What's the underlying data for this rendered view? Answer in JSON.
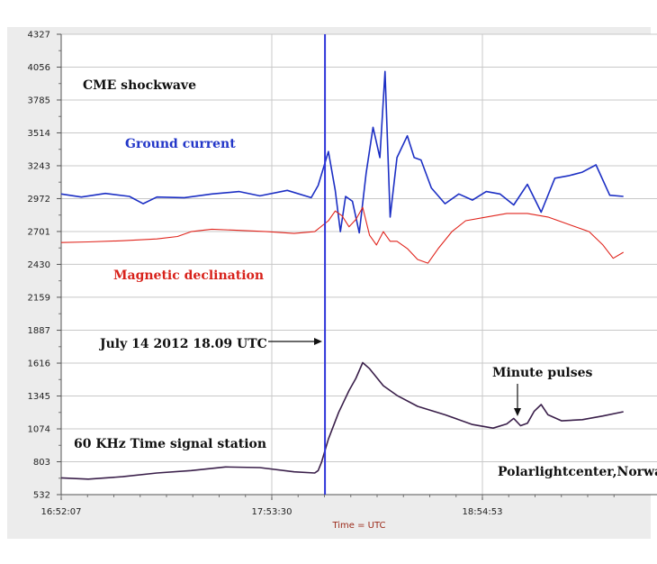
{
  "chart_data": {
    "type": "line",
    "xlabel": "Time = UTC",
    "x_ticks": [
      "16:52:07",
      "17:53:30",
      "18:54:53"
    ],
    "y_ticks": [
      532,
      803,
      1074,
      1345,
      1616,
      1887,
      2159,
      2430,
      2701,
      2972,
      3243,
      3514,
      3785,
      4056,
      4327
    ],
    "ylim": [
      532,
      4327
    ],
    "xlim": [
      "16:52:07",
      "19:36:00"
    ],
    "grid": true,
    "colors": {
      "ground_current": "#1c2fc4",
      "magnetic_declination": "#e0241c",
      "time_signal": "#3a1f4a",
      "event_line": "#2f35d9",
      "annotation_red": "#d8221b",
      "annotation_blue": "#2236c8",
      "axis_label": "#9b2a1a"
    },
    "series": [
      {
        "name": "Ground current",
        "x": [
          "16:52:07",
          "16:58:00",
          "17:05:00",
          "17:12:00",
          "17:16:00",
          "17:20:00",
          "17:28:00",
          "17:36:00",
          "17:44:00",
          "17:50:00",
          "17:58:00",
          "18:05:00",
          "18:07:00",
          "18:10:00",
          "18:12:00",
          "18:13:30",
          "18:15:00",
          "18:17:00",
          "18:19:00",
          "18:21:00",
          "18:23:00",
          "18:25:00",
          "18:26:30",
          "18:28:00",
          "18:30:00",
          "18:33:00",
          "18:35:00",
          "18:37:00",
          "18:40:00",
          "18:44:00",
          "18:48:00",
          "18:52:00",
          "18:56:00",
          "19:00:00",
          "19:04:00",
          "19:08:00",
          "19:12:00",
          "19:16:00",
          "19:20:00",
          "19:24:00",
          "19:28:00",
          "19:32:00",
          "19:36:00"
        ],
        "values": [
          3010,
          2985,
          3015,
          2990,
          2930,
          2985,
          2980,
          3010,
          3030,
          2995,
          3040,
          2980,
          3080,
          3360,
          3040,
          2700,
          2990,
          2950,
          2690,
          3180,
          3560,
          3310,
          4020,
          2820,
          3310,
          3490,
          3310,
          3290,
          3060,
          2930,
          3010,
          2960,
          3030,
          3010,
          2920,
          3090,
          2860,
          3140,
          3160,
          3190,
          3250,
          3000,
          2990
        ]
      },
      {
        "name": "Magnetic declination",
        "x": [
          "16:52:07",
          "17:00:00",
          "17:10:00",
          "17:20:00",
          "17:26:00",
          "17:30:00",
          "17:36:00",
          "17:44:00",
          "17:52:00",
          "18:00:00",
          "18:06:00",
          "18:10:00",
          "18:12:00",
          "18:14:00",
          "18:16:00",
          "18:18:00",
          "18:20:00",
          "18:22:00",
          "18:24:00",
          "18:26:00",
          "18:28:00",
          "18:30:00",
          "18:33:00",
          "18:36:00",
          "18:39:00",
          "18:42:00",
          "18:46:00",
          "18:50:00",
          "18:56:00",
          "19:02:00",
          "19:08:00",
          "19:14:00",
          "19:20:00",
          "19:26:00",
          "19:30:00",
          "19:33:00",
          "19:36:00"
        ],
        "values": [
          2610,
          2615,
          2625,
          2640,
          2660,
          2700,
          2720,
          2710,
          2700,
          2685,
          2700,
          2790,
          2870,
          2830,
          2740,
          2800,
          2900,
          2670,
          2590,
          2700,
          2620,
          2620,
          2560,
          2470,
          2440,
          2560,
          2700,
          2790,
          2820,
          2850,
          2850,
          2820,
          2760,
          2700,
          2590,
          2480,
          2530
        ]
      },
      {
        "name": "60 KHz Time signal station",
        "x": [
          "16:52:07",
          "17:00:00",
          "17:10:00",
          "17:20:00",
          "17:30:00",
          "17:40:00",
          "17:50:00",
          "18:00:00",
          "18:06:00",
          "18:07:00",
          "18:08:00",
          "18:10:00",
          "18:13:00",
          "18:16:00",
          "18:18:00",
          "18:20:00",
          "18:22:00",
          "18:26:00",
          "18:30:00",
          "18:36:00",
          "18:44:00",
          "18:52:00",
          "18:58:00",
          "19:02:00",
          "19:04:00",
          "19:06:00",
          "19:08:00",
          "19:10:00",
          "19:12:00",
          "19:14:00",
          "19:18:00",
          "19:24:00",
          "19:30:00",
          "19:36:00"
        ],
        "values": [
          670,
          660,
          680,
          710,
          730,
          760,
          755,
          720,
          710,
          730,
          800,
          990,
          1210,
          1390,
          1490,
          1620,
          1570,
          1430,
          1350,
          1260,
          1190,
          1110,
          1080,
          1115,
          1160,
          1100,
          1120,
          1220,
          1275,
          1190,
          1140,
          1150,
          1180,
          1215
        ]
      }
    ],
    "annotations": {
      "cme": "CME shockwave",
      "ground_current": "Ground current",
      "magnetic_declination": "Magnetic declination",
      "event": "July 14  2012   18.09 UTC",
      "time_signal": "60 KHz Time signal station",
      "minute_pulses": "Minute pulses",
      "credit": "Polarlightcenter,Norway."
    },
    "event_time": "18:09:00"
  }
}
